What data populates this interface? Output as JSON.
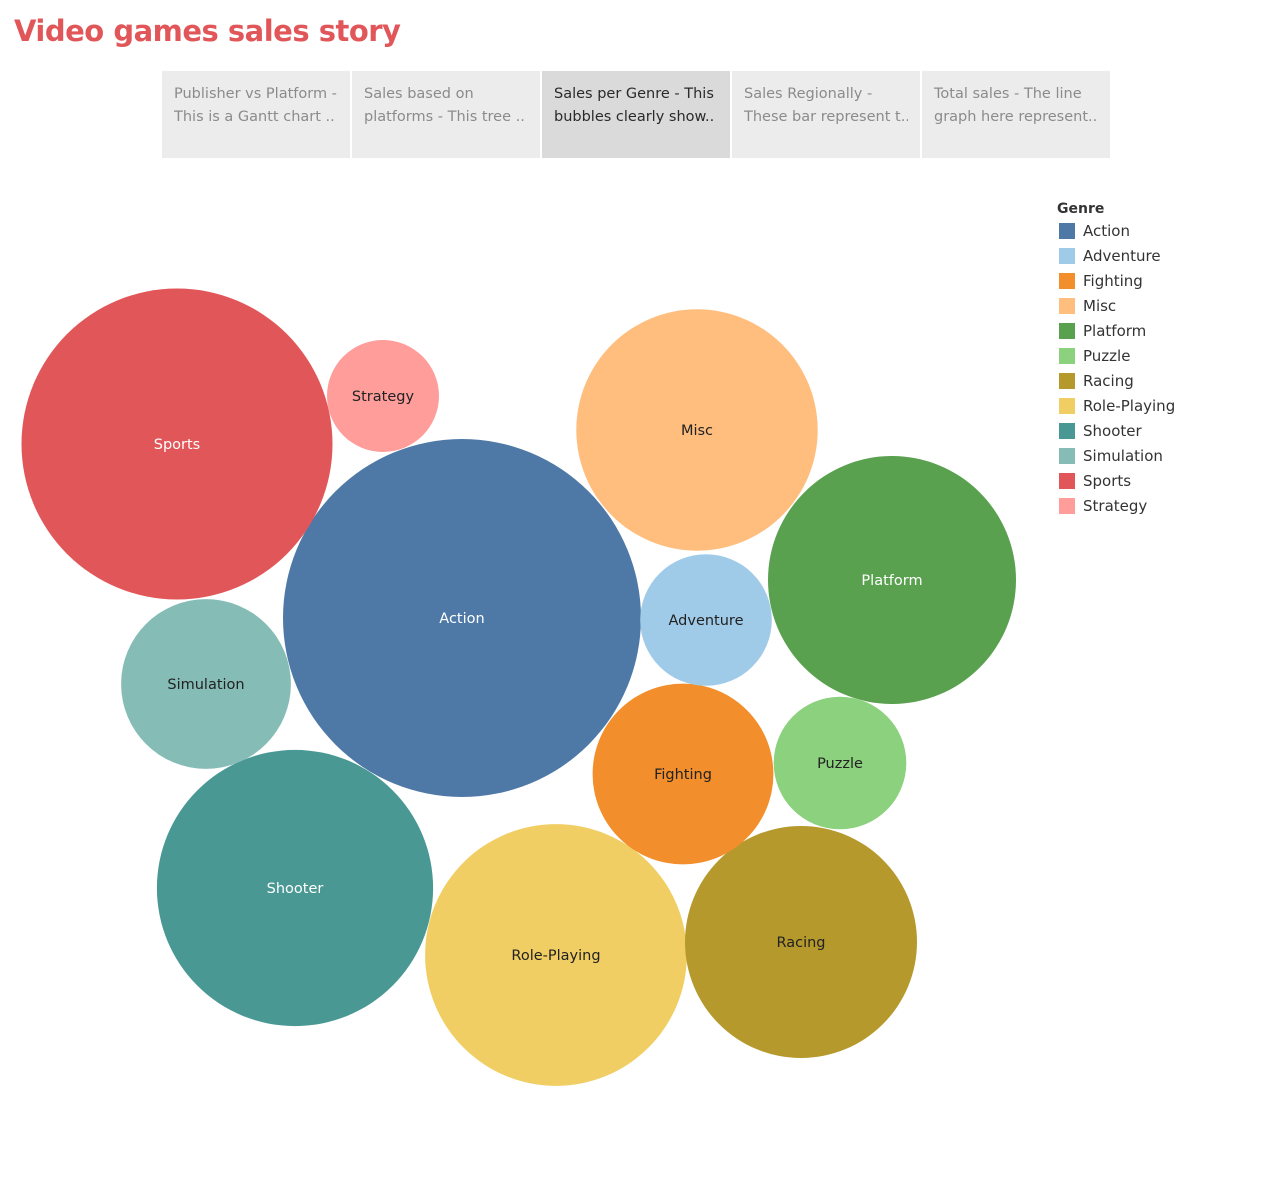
{
  "story": {
    "title": "Video games sales story",
    "points": [
      {
        "line1": "Publisher vs Platform -",
        "line2": "This is a Gantt chart ..",
        "active": false
      },
      {
        "line1": "Sales based on",
        "line2": "platforms - This tree ..",
        "active": false
      },
      {
        "line1": "Sales per Genre - This",
        "line2": "bubbles clearly show..",
        "active": true
      },
      {
        "line1": "Sales Regionally -",
        "line2": "These bar represent t..",
        "active": false
      },
      {
        "line1": "Total sales - The line",
        "line2": "graph here represent..",
        "active": false
      }
    ]
  },
  "legend": {
    "title": "Genre",
    "items": [
      {
        "label": "Action",
        "color": "#4e79a7"
      },
      {
        "label": "Adventure",
        "color": "#a0cbe8"
      },
      {
        "label": "Fighting",
        "color": "#f28e2b"
      },
      {
        "label": "Misc",
        "color": "#ffbe7d"
      },
      {
        "label": "Platform",
        "color": "#59a14f"
      },
      {
        "label": "Puzzle",
        "color": "#8cd17d"
      },
      {
        "label": "Racing",
        "color": "#b6992d"
      },
      {
        "label": "Role-Playing",
        "color": "#f1ce63"
      },
      {
        "label": "Shooter",
        "color": "#499894"
      },
      {
        "label": "Simulation",
        "color": "#86bcb6"
      },
      {
        "label": "Sports",
        "color": "#e15759"
      },
      {
        "label": "Strategy",
        "color": "#ff9d9a"
      }
    ]
  },
  "chart_data": {
    "type": "bubble",
    "title": "",
    "size_measure_relative": true,
    "bubbles": [
      {
        "genre": "Action",
        "size": 1.0,
        "color": "#4e79a7",
        "label_color": "#ffffff"
      },
      {
        "genre": "Sports",
        "size": 0.755,
        "color": "#e15759",
        "label_color": "#ffffff"
      },
      {
        "genre": "Shooter",
        "size": 0.595,
        "color": "#499894",
        "label_color": "#ffffff"
      },
      {
        "genre": "Role-Playing",
        "size": 0.535,
        "color": "#f1ce63",
        "label_color": "#222222"
      },
      {
        "genre": "Platform",
        "size": 0.48,
        "color": "#59a14f",
        "label_color": "#ffffff"
      },
      {
        "genre": "Misc",
        "size": 0.455,
        "color": "#ffbe7d",
        "label_color": "#222222"
      },
      {
        "genre": "Racing",
        "size": 0.42,
        "color": "#b6992d",
        "label_color": "#222222"
      },
      {
        "genre": "Fighting",
        "size": 0.255,
        "color": "#f28e2b",
        "label_color": "#222222"
      },
      {
        "genre": "Simulation",
        "size": 0.225,
        "color": "#86bcb6",
        "label_color": "#222222"
      },
      {
        "genre": "Adventure",
        "size": 0.135,
        "color": "#a0cbe8",
        "label_color": "#222222"
      },
      {
        "genre": "Puzzle",
        "size": 0.137,
        "color": "#8cd17d",
        "label_color": "#222222"
      },
      {
        "genre": "Strategy",
        "size": 0.098,
        "color": "#ff9d9a",
        "label_color": "#222222"
      }
    ]
  }
}
